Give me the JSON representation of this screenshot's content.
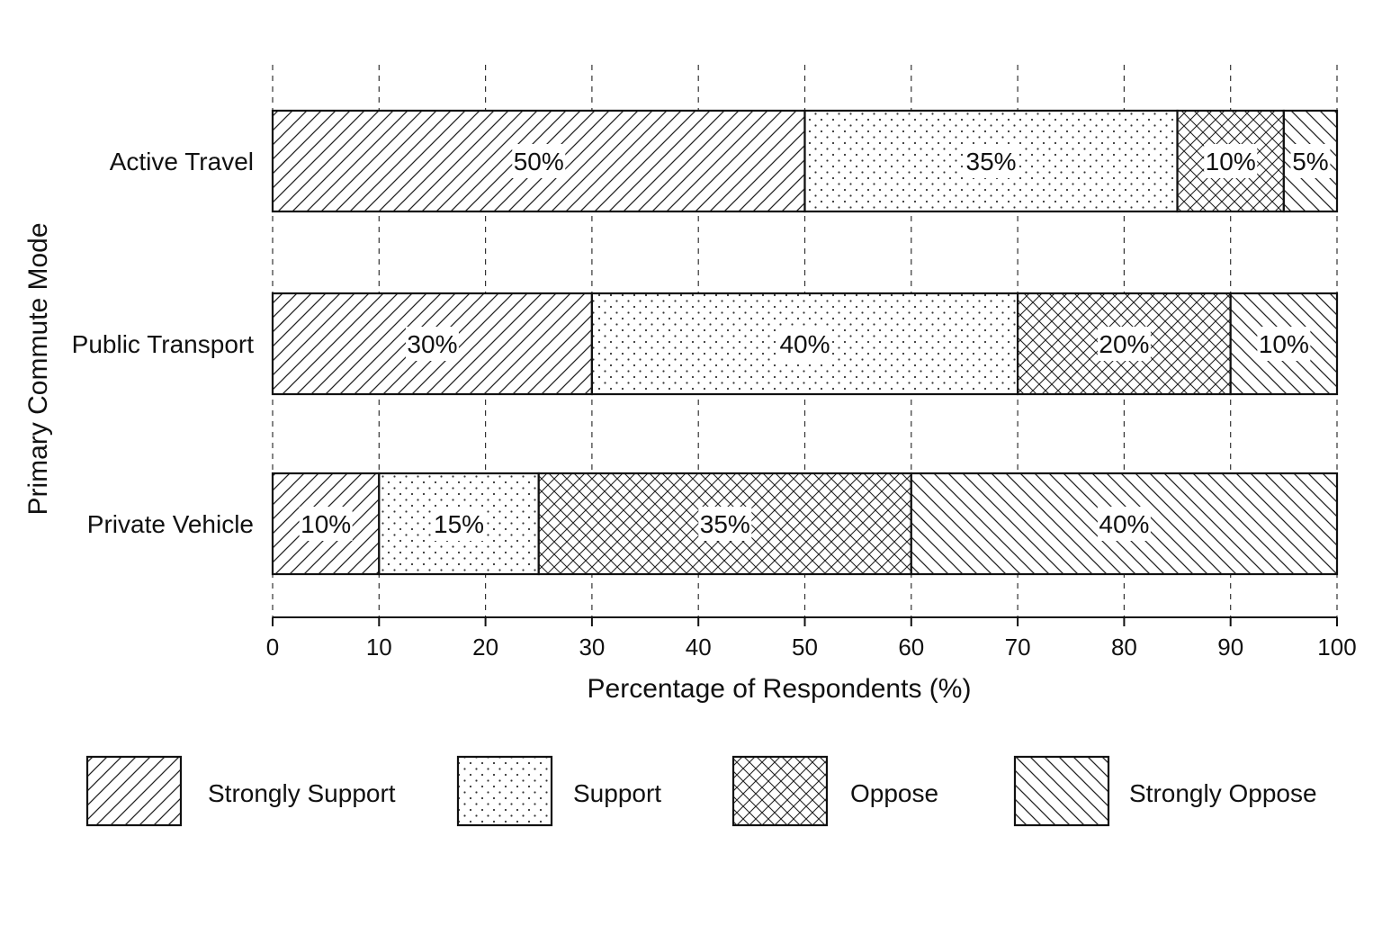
{
  "chart_data": {
    "type": "bar",
    "orientation": "horizontal",
    "stacked": true,
    "categories": [
      "Active Travel",
      "Public Transport",
      "Private Vehicle"
    ],
    "series": [
      {
        "name": "Strongly Support",
        "values": [
          50,
          30,
          10
        ],
        "labels": [
          "50%",
          "30%",
          "10%"
        ],
        "pattern": "diag-forward"
      },
      {
        "name": "Support",
        "values": [
          35,
          40,
          15
        ],
        "labels": [
          "35%",
          "40%",
          "15%"
        ],
        "pattern": "dots"
      },
      {
        "name": "Oppose",
        "values": [
          10,
          20,
          35
        ],
        "labels": [
          "10%",
          "20%",
          "35%"
        ],
        "pattern": "crosshatch"
      },
      {
        "name": "Strongly Oppose",
        "values": [
          5,
          10,
          40
        ],
        "labels": [
          "5%",
          "10%",
          "40%"
        ],
        "pattern": "diag-back"
      }
    ],
    "xlabel": "Percentage of Respondents (%)",
    "ylabel": "Primary Commute Mode",
    "xlim": [
      0,
      100
    ],
    "xticks": [
      "0",
      "10",
      "20",
      "30",
      "40",
      "50",
      "60",
      "70",
      "80",
      "90",
      "100"
    ],
    "grid": "vertical dashed",
    "legend_position": "bottom"
  }
}
